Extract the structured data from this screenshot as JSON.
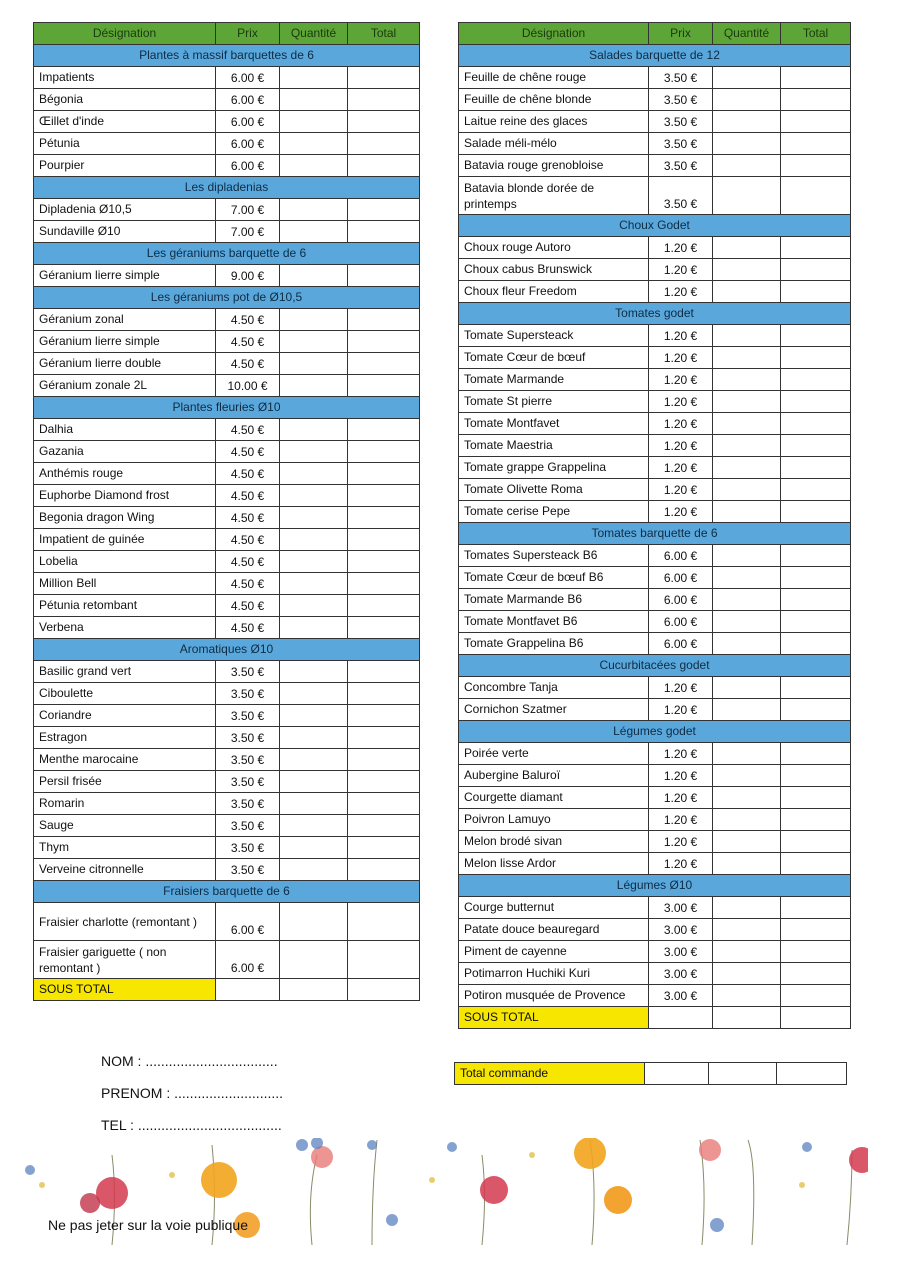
{
  "headers": {
    "designation": "Désignation",
    "prix": "Prix",
    "quantite": "Quantité",
    "total": "Total"
  },
  "left_table": [
    {
      "section": "Plantes à massif barquettes de 6",
      "items": [
        {
          "name": "Impatients",
          "price": "6.00 €"
        },
        {
          "name": "Bégonia",
          "price": "6.00 €"
        },
        {
          "name": "Œillet d'inde",
          "price": "6.00 €"
        },
        {
          "name": "Pétunia",
          "price": "6.00 €"
        },
        {
          "name": "Pourpier",
          "price": "6.00 €"
        }
      ]
    },
    {
      "section": "Les dipladenias",
      "items": [
        {
          "name": "Dipladenia Ø10,5",
          "price": "7.00 €"
        },
        {
          "name": "Sundaville Ø10",
          "price": "7.00 €"
        }
      ]
    },
    {
      "section": "Les géraniums barquette de 6",
      "items": [
        {
          "name": "Géranium lierre simple",
          "price": "9.00 €"
        }
      ]
    },
    {
      "section": "Les géraniums pot de Ø10,5",
      "items": [
        {
          "name": "Géranium zonal",
          "price": "4.50 €"
        },
        {
          "name": "Géranium lierre simple",
          "price": "4.50 €"
        },
        {
          "name": "Géranium lierre double",
          "price": "4.50 €"
        },
        {
          "name": "Géranium zonale 2L",
          "price": "10.00 €"
        }
      ]
    },
    {
      "section": "Plantes fleuries Ø10",
      "items": [
        {
          "name": "Dalhia",
          "price": "4.50 €"
        },
        {
          "name": "Gazania",
          "price": "4.50 €"
        },
        {
          "name": "Anthémis rouge",
          "price": "4.50 €"
        },
        {
          "name": "Euphorbe Diamond frost",
          "price": "4.50 €"
        },
        {
          "name": "Begonia dragon Wing",
          "price": "4.50 €"
        },
        {
          "name": "Impatient de guinée",
          "price": "4.50 €"
        },
        {
          "name": "Lobelia",
          "price": "4.50 €"
        },
        {
          "name": "Million Bell",
          "price": "4.50 €"
        },
        {
          "name": "Pétunia retombant",
          "price": "4.50 €"
        },
        {
          "name": "Verbena",
          "price": "4.50 €"
        }
      ]
    },
    {
      "section": "Aromatiques Ø10",
      "items": [
        {
          "name": "Basilic grand vert",
          "price": "3.50 €"
        },
        {
          "name": "Ciboulette",
          "price": "3.50 €"
        },
        {
          "name": "Coriandre",
          "price": "3.50 €"
        },
        {
          "name": "Estragon",
          "price": "3.50 €"
        },
        {
          "name": "Menthe marocaine",
          "price": "3.50 €"
        },
        {
          "name": "Persil frisée",
          "price": "3.50 €"
        },
        {
          "name": "Romarin",
          "price": "3.50 €"
        },
        {
          "name": "Sauge",
          "price": "3.50 €"
        },
        {
          "name": "Thym",
          "price": "3.50 €"
        },
        {
          "name": "Verveine citronnelle",
          "price": "3.50 €"
        }
      ]
    },
    {
      "section": "Fraisiers barquette de 6",
      "items": [
        {
          "name": "Fraisier charlotte (remontant )",
          "price": "6.00 €",
          "tall": true
        },
        {
          "name": "Fraisier gariguette ( non remontant )",
          "price": "6.00 €",
          "tall": true
        }
      ]
    }
  ],
  "right_table": [
    {
      "section": "Salades barquette de 12",
      "items": [
        {
          "name": "Feuille de chêne rouge",
          "price": "3.50 €"
        },
        {
          "name": "Feuille de chêne blonde",
          "price": "3.50 €"
        },
        {
          "name": "Laitue reine des glaces",
          "price": "3.50 €"
        },
        {
          "name": "Salade méli-mélo",
          "price": "3.50 €"
        },
        {
          "name": "Batavia rouge grenobloise",
          "price": "3.50 €"
        },
        {
          "name": "Batavia blonde dorée de printemps",
          "price": "3.50 €",
          "tall": true
        }
      ]
    },
    {
      "section": "Choux Godet",
      "items": [
        {
          "name": "Choux rouge Autoro",
          "price": "1.20 €"
        },
        {
          "name": "Choux cabus Brunswick",
          "price": "1.20 €"
        },
        {
          "name": "Choux fleur Freedom",
          "price": "1.20 €"
        }
      ]
    },
    {
      "section": "Tomates godet",
      "items": [
        {
          "name": "Tomate Supersteack",
          "price": "1.20 €"
        },
        {
          "name": "Tomate Cœur de bœuf",
          "price": "1.20 €"
        },
        {
          "name": "Tomate Marmande",
          "price": "1.20 €"
        },
        {
          "name": "Tomate St pierre",
          "price": "1.20 €"
        },
        {
          "name": "Tomate Montfavet",
          "price": "1.20 €"
        },
        {
          "name": "Tomate Maestria",
          "price": "1.20 €"
        },
        {
          "name": "Tomate grappe Grappelina",
          "price": "1.20 €"
        },
        {
          "name": "Tomate Olivette Roma",
          "price": "1.20 €"
        },
        {
          "name": "Tomate cerise Pepe",
          "price": "1.20 €"
        }
      ]
    },
    {
      "section": "Tomates barquette de 6",
      "items": [
        {
          "name": "Tomates Supersteack B6",
          "price": "6.00 €"
        },
        {
          "name": "Tomate Cœur de bœuf B6",
          "price": "6.00 €"
        },
        {
          "name": "Tomate Marmande B6",
          "price": "6.00 €"
        },
        {
          "name": "Tomate Montfavet B6",
          "price": "6.00 €"
        },
        {
          "name": "Tomate Grappelina B6",
          "price": "6.00 €"
        }
      ]
    },
    {
      "section": "Cucurbitacées godet",
      "items": [
        {
          "name": "Concombre Tanja",
          "price": "1.20 €"
        },
        {
          "name": "Cornichon Szatmer",
          "price": "1.20 €"
        }
      ]
    },
    {
      "section": "Légumes godet",
      "items": [
        {
          "name": "Poirée verte",
          "price": "1.20 €"
        },
        {
          "name": "Aubergine Baluroï",
          "price": "1.20 €"
        },
        {
          "name": "Courgette diamant",
          "price": "1.20 €"
        },
        {
          "name": "Poivron Lamuyo",
          "price": "1.20 €"
        },
        {
          "name": "Melon brodé sivan",
          "price": "1.20 €"
        },
        {
          "name": "Melon lisse Ardor",
          "price": "1.20 €"
        }
      ]
    },
    {
      "section": "Légumes Ø10",
      "items": [
        {
          "name": "Courge butternut",
          "price": "3.00 €"
        },
        {
          "name": "Patate douce beauregard",
          "price": "3.00 €"
        },
        {
          "name": "Piment de cayenne",
          "price": "3.00 €"
        },
        {
          "name": "Potimarron Huchiki Kuri",
          "price": "3.00 €"
        },
        {
          "name": "Potiron musquée de Provence",
          "price": "3.00 €"
        }
      ]
    }
  ],
  "subtotal_label": "SOUS TOTAL",
  "grand_total_label": "Total commande",
  "contact": {
    "nom": "NOM : ..................................",
    "prenom": "PRENOM : ............................",
    "tel": "TEL : ....................................."
  },
  "footer_note": "Ne pas jeter sur la voie publique",
  "colors": {
    "header": "#5ea537",
    "section": "#5aa7dc",
    "subtotal": "#f6e600"
  }
}
